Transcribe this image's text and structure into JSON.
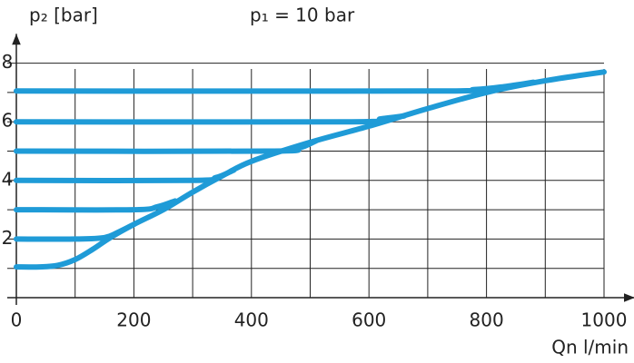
{
  "chart_data": {
    "type": "line",
    "title": "p₁ = 10 bar",
    "ylabel": "p₂ [bar]",
    "xlabel": "Qn l/min",
    "xlim": [
      0,
      1040
    ],
    "ylim": [
      0,
      9
    ],
    "xticks": [
      0,
      200,
      400,
      600,
      800,
      1000
    ],
    "yticks": [
      2,
      4,
      6,
      8
    ],
    "xminor": [
      100,
      300,
      500,
      700,
      900
    ],
    "yminor": [
      1,
      3,
      5,
      7
    ],
    "grid": true,
    "series": [
      {
        "color": "#1f9bd7",
        "x": [
          0,
          40,
          70,
          100,
          130,
          160,
          200,
          250,
          300,
          350,
          400,
          500,
          600,
          700,
          800,
          900,
          1000
        ],
        "values": [
          1.05,
          1.05,
          1.1,
          1.3,
          1.65,
          2.05,
          2.5,
          3.0,
          3.6,
          4.15,
          4.65,
          5.3,
          5.85,
          6.45,
          7.0,
          7.4,
          7.7
        ]
      },
      {
        "color": "#1f9bd7",
        "x": [
          0,
          100,
          150,
          175,
          200
        ],
        "values": [
          2,
          2,
          2.05,
          2.25,
          2.5
        ]
      },
      {
        "color": "#1f9bd7",
        "x": [
          0,
          200,
          240,
          270
        ],
        "values": [
          3,
          3,
          3.1,
          3.3
        ]
      },
      {
        "color": "#1f9bd7",
        "x": [
          0,
          300,
          340,
          370
        ],
        "values": [
          4,
          4,
          4.1,
          4.35
        ]
      },
      {
        "color": "#1f9bd7",
        "x": [
          0,
          430,
          480,
          510
        ],
        "values": [
          5,
          5,
          5.1,
          5.35
        ]
      },
      {
        "color": "#1f9bd7",
        "x": [
          0,
          570,
          620,
          660
        ],
        "values": [
          6,
          6,
          6.1,
          6.2
        ]
      },
      {
        "color": "#1f9bd7",
        "x": [
          0,
          700,
          780,
          830,
          880
        ],
        "values": [
          7.05,
          7.05,
          7.1,
          7.2,
          7.35
        ]
      }
    ]
  }
}
